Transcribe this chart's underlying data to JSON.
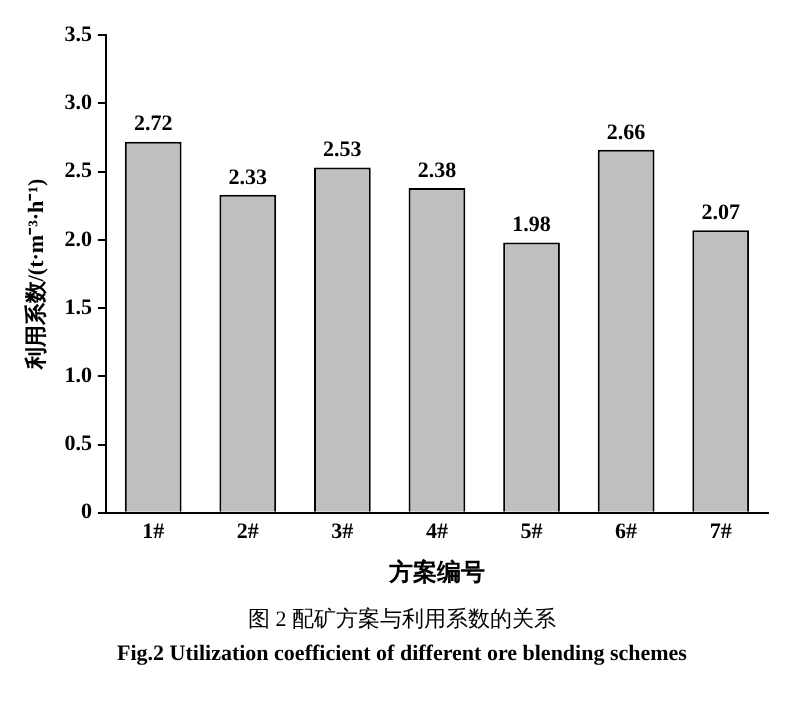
{
  "chart_data": {
    "type": "bar",
    "xlabel": "方案编号",
    "ylabel": "利用系数/(t·m⁻³·h⁻¹)",
    "categories": [
      "1#",
      "2#",
      "3#",
      "4#",
      "5#",
      "6#",
      "7#"
    ],
    "values": [
      2.72,
      2.33,
      2.53,
      2.38,
      1.98,
      2.66,
      2.07
    ],
    "color": "#bfbfbf",
    "data_labels": true,
    "ylim": [
      0,
      3.5
    ],
    "yticks": [
      0,
      0.5,
      {
        "value": 1,
        "label": "1.0"
      },
      1.5,
      {
        "value": 2,
        "label": "2.0"
      },
      2.5,
      {
        "value": 3,
        "label": "3.0"
      },
      3.5
    ],
    "grid": false,
    "legend": false,
    "annotations": [
      "图 2  配矿方案与利用系数的关系",
      "Fig.2  Utilization coefficient of different ore blending schemes"
    ]
  }
}
